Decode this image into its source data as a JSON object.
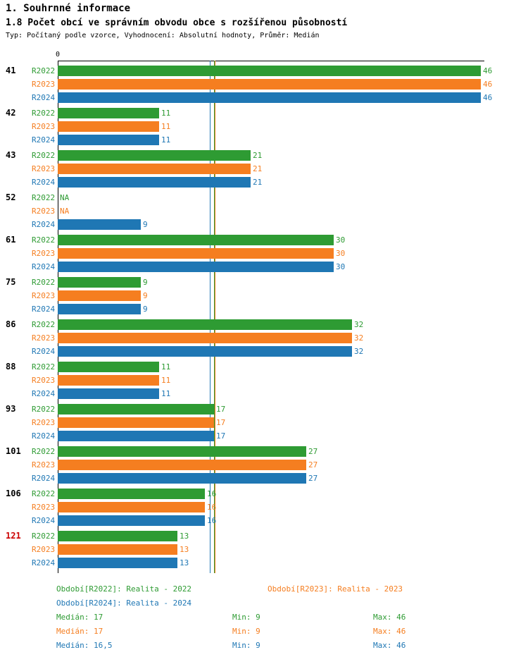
{
  "header": {
    "title": "1. Souhrnné informace",
    "subtitle": "1.8 Počet obcí ve správním obvodu obce s rozšířenou působností",
    "meta": "Typ: Počítaný podle vzorce, Vyhodnocení: Absolutní hodnoty, Průměr: Medián"
  },
  "chart_data": {
    "type": "bar",
    "orientation": "horizontal",
    "title": "1.8 Počet obcí ve správním obvodu obce s rozšířenou působností",
    "axis_zero_label": "0",
    "xlim": [
      0,
      46
    ],
    "series": [
      {
        "name": "R2022",
        "color": "#2E9B33"
      },
      {
        "name": "R2023",
        "color": "#F57E20"
      },
      {
        "name": "R2024",
        "color": "#1F77B4"
      }
    ],
    "groups": [
      {
        "label": "41",
        "values": [
          46,
          46,
          46
        ]
      },
      {
        "label": "42",
        "values": [
          11,
          11,
          11
        ]
      },
      {
        "label": "43",
        "values": [
          21,
          21,
          21
        ]
      },
      {
        "label": "52",
        "values": [
          "NA",
          "NA",
          9
        ]
      },
      {
        "label": "61",
        "values": [
          30,
          30,
          30
        ]
      },
      {
        "label": "75",
        "values": [
          9,
          9,
          9
        ]
      },
      {
        "label": "86",
        "values": [
          32,
          32,
          32
        ]
      },
      {
        "label": "88",
        "values": [
          11,
          11,
          11
        ]
      },
      {
        "label": "93",
        "values": [
          17,
          17,
          17
        ]
      },
      {
        "label": "101",
        "values": [
          27,
          27,
          27
        ]
      },
      {
        "label": "106",
        "values": [
          16,
          16,
          16
        ]
      },
      {
        "label": "121",
        "values": [
          13,
          13,
          13
        ],
        "label_color": "#CC0000"
      }
    ],
    "medians": [
      {
        "series": "R2022",
        "value": 17,
        "color": "#2E9B33"
      },
      {
        "series": "R2023",
        "value": 17,
        "color": "#F57E20"
      },
      {
        "series": "R2024",
        "value": 16.5,
        "color": "#1F77B4"
      }
    ]
  },
  "legend": [
    {
      "label": "Období[R2022]:",
      "value": "Realita - 2022",
      "color": "#2E9B33"
    },
    {
      "label": "Období[R2023]:",
      "value": "Realita - 2023",
      "color": "#F57E20"
    },
    {
      "label": "Období[R2024]:",
      "value": "Realita - 2024",
      "color": "#1F77B4"
    }
  ],
  "stats": [
    {
      "median": "Medián: 17",
      "min": "Min: 9",
      "max": "Max: 46",
      "color": "#2E9B33"
    },
    {
      "median": "Medián: 17",
      "min": "Min: 9",
      "max": "Max: 46",
      "color": "#F57E20"
    },
    {
      "median": "Medián: 16,5",
      "min": "Min: 9",
      "max": "Max: 46",
      "color": "#1F77B4"
    }
  ]
}
